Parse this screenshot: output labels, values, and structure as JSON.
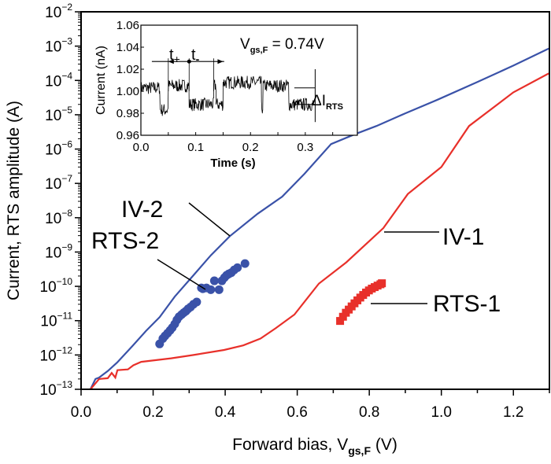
{
  "chart_data": [
    {
      "type": "line",
      "role": "main",
      "xlabel": "Forward bias, V",
      "xlabel_sub": "gs,F",
      "xlabel_unit": " (V)",
      "ylabel": "Current, RTS amplitude (A)",
      "xlim": [
        0,
        1.3
      ],
      "ylim": [
        1e-13,
        0.01
      ],
      "yscale": "log",
      "grid": false,
      "x_ticks": [
        "0.0",
        "0.2",
        "0.4",
        "0.6",
        "0.8",
        "1.0",
        "1.2"
      ],
      "x_tick_values": [
        0,
        0.2,
        0.4,
        0.6,
        0.8,
        1.0,
        1.2
      ],
      "y_ticks": [
        -13,
        -12,
        -11,
        -10,
        -9,
        -8,
        -7,
        -6,
        -5,
        -4,
        -3,
        -2
      ],
      "series": [
        {
          "name": "IV-2",
          "kind": "line",
          "color": "#3a52a8",
          "x": [
            0.026,
            0.04,
            0.05,
            0.074,
            0.1,
            0.142,
            0.18,
            0.218,
            0.26,
            0.312,
            0.36,
            0.413,
            0.49,
            0.558,
            0.62,
            0.694,
            0.76,
            0.82,
            0.9,
            0.99,
            1.1,
            1.2,
            1.298
          ],
          "y": [
            1e-13,
            2e-13,
            2.2e-13,
            3.4e-13,
            6e-13,
            1.8e-12,
            5e-12,
            1.26e-11,
            5e-11,
            2.1e-10,
            8e-10,
            2.9e-09,
            1.3e-08,
            4.1e-08,
            1.9e-07,
            1.4e-06,
            2.7e-06,
            4.7e-06,
            1.1e-05,
            2.75e-05,
            9e-05,
            0.00027,
            0.00085
          ]
        },
        {
          "name": "IV-1",
          "kind": "line",
          "color": "#e8302a",
          "x": [
            0.026,
            0.05,
            0.074,
            0.085,
            0.095,
            0.101,
            0.13,
            0.145,
            0.167,
            0.25,
            0.312,
            0.397,
            0.45,
            0.498,
            0.54,
            0.592,
            0.66,
            0.736,
            0.839,
            0.907,
            1.0,
            1.077,
            1.2,
            1.298
          ],
          "y": [
            1e-13,
            2e-13,
            2.1e-13,
            3e-13,
            2.2e-13,
            3.6e-13,
            3.8e-13,
            5e-13,
            6.3e-13,
            8e-13,
            1e-12,
            1.4e-12,
            1.9e-12,
            3e-12,
            6e-12,
            1.5e-11,
            1.2e-10,
            5e-10,
            5e-09,
            4.9e-08,
            3e-07,
            4.7e-06,
            4.5e-05,
            0.00016
          ]
        },
        {
          "name": "RTS-2",
          "kind": "scatter",
          "marker": "circle",
          "color": "#3a52a8",
          "x": [
            0.218,
            0.227,
            0.233,
            0.24,
            0.247,
            0.253,
            0.26,
            0.266,
            0.272,
            0.279,
            0.285,
            0.291,
            0.297,
            0.304,
            0.312,
            0.321,
            0.334,
            0.338,
            0.348,
            0.36,
            0.37,
            0.383,
            0.391,
            0.398,
            0.404,
            0.41,
            0.417,
            0.425,
            0.434,
            0.455
          ],
          "y": [
            2.1e-12,
            3e-12,
            3.6e-12,
            4.3e-12,
            5.2e-12,
            6.2e-12,
            8e-12,
            1.05e-11,
            1.3e-11,
            1.5e-11,
            1.7e-11,
            1.9e-11,
            2.2e-11,
            2.5e-11,
            3e-11,
            3.5e-11,
            9e-11,
            8.5e-11,
            9e-11,
            8e-11,
            1.45e-10,
            8e-11,
            1.45e-10,
            1.8e-10,
            2.1e-10,
            2.3e-10,
            2.5e-10,
            3e-10,
            3.5e-10,
            4.6e-10
          ]
        },
        {
          "name": "RTS-1",
          "kind": "scatter",
          "marker": "square",
          "color": "#e8302a",
          "x": [
            0.719,
            0.727,
            0.735,
            0.743,
            0.751,
            0.759,
            0.767,
            0.775,
            0.783,
            0.791,
            0.799,
            0.807,
            0.815,
            0.823,
            0.831,
            0.835
          ],
          "y": [
            9.8e-12,
            1.3e-11,
            1.7e-11,
            2.1e-11,
            2.6e-11,
            3.2e-11,
            3.9e-11,
            4.7e-11,
            5.6e-11,
            6.6e-11,
            7.6e-11,
            8.6e-11,
            9.5e-11,
            1.05e-10,
            1.15e-10,
            1.23e-10
          ]
        }
      ],
      "annotations": [
        {
          "text": "IV-2",
          "target": "IV-2"
        },
        {
          "text": "RTS-2",
          "target": "RTS-2"
        },
        {
          "text": "IV-1",
          "target": "IV-1"
        },
        {
          "text": "RTS-1",
          "target": "RTS-1"
        }
      ]
    },
    {
      "type": "line",
      "role": "inset",
      "xlabel": "Time (s)",
      "ylabel": "Current (nA)",
      "xlim": [
        0,
        0.395
      ],
      "ylim": [
        0.96,
        1.06
      ],
      "x_ticks": [
        "0.0",
        "0.1",
        "0.2",
        "0.3"
      ],
      "x_tick_values": [
        0,
        0.1,
        0.2,
        0.3
      ],
      "y_ticks": [
        "0.96",
        "0.98",
        "1.00",
        "1.02",
        "1.04",
        "1.06"
      ],
      "y_tick_values": [
        0.96,
        0.98,
        1.0,
        1.02,
        1.04,
        1.06
      ],
      "color": "#000000",
      "rts_levels": [
        {
          "t_start": 0.0,
          "t_end": 0.035,
          "current": 1.003
        },
        {
          "t_start": 0.035,
          "t_end": 0.05,
          "current": 0.983
        },
        {
          "t_start": 0.05,
          "t_end": 0.088,
          "current": 1.005
        },
        {
          "t_start": 0.088,
          "t_end": 0.133,
          "current": 0.988
        },
        {
          "t_start": 0.133,
          "t_end": 0.137,
          "current": 1.005
        },
        {
          "t_start": 0.137,
          "t_end": 0.15,
          "current": 0.988
        },
        {
          "t_start": 0.15,
          "t_end": 0.22,
          "current": 1.008
        },
        {
          "t_start": 0.22,
          "t_end": 0.223,
          "current": 0.985
        },
        {
          "t_start": 0.223,
          "t_end": 0.27,
          "current": 1.005
        },
        {
          "t_start": 0.27,
          "t_end": 0.315,
          "current": 0.988
        }
      ],
      "annotation_condition": "V",
      "annotation_condition_sub": "gs,F",
      "annotation_condition_value": " = 0.74V",
      "t_plus": "t",
      "t_plus_sub": "+",
      "t_minus": "t",
      "t_minus_sub": "-",
      "delta_label": "ΔI",
      "delta_sub": "RTS"
    }
  ]
}
